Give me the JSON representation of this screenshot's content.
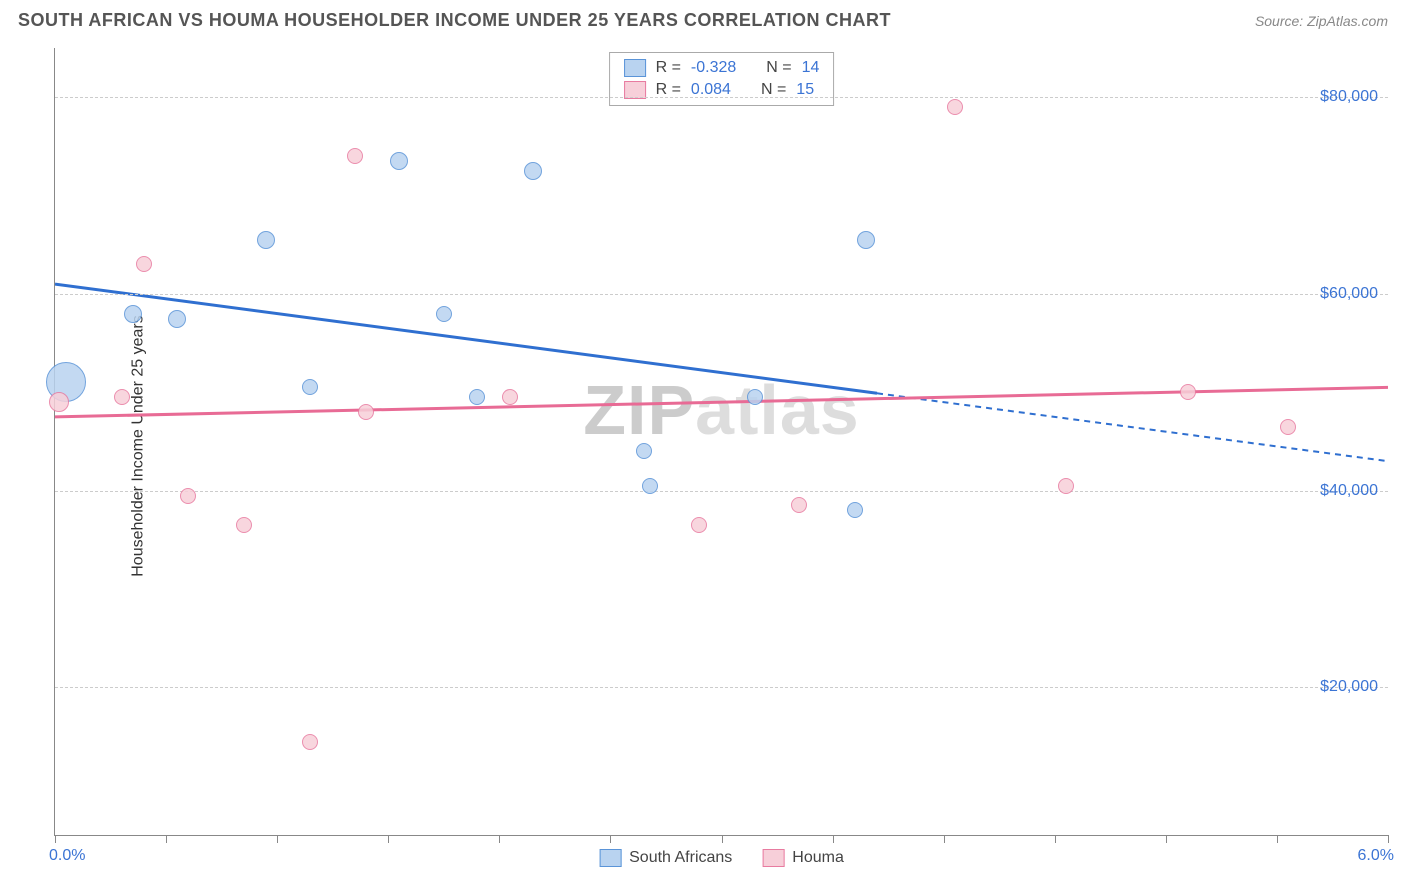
{
  "header": {
    "title": "SOUTH AFRICAN VS HOUMA HOUSEHOLDER INCOME UNDER 25 YEARS CORRELATION CHART",
    "source": "Source: ZipAtlas.com"
  },
  "watermark": {
    "part1": "ZIP",
    "part2": "atlas"
  },
  "chart": {
    "type": "scatter",
    "ylabel": "Householder Income Under 25 years",
    "xlim": [
      0.0,
      6.0
    ],
    "ylim": [
      5000,
      85000
    ],
    "xticks_pct": [
      0,
      0.5,
      1.0,
      1.5,
      2.0,
      2.5,
      3.0,
      3.5,
      4.0,
      4.5,
      5.0,
      5.5,
      6.0
    ],
    "xaxis_start_label": "0.0%",
    "xaxis_end_label": "6.0%",
    "yticks": [
      {
        "value": 20000,
        "label": "$20,000"
      },
      {
        "value": 40000,
        "label": "$40,000"
      },
      {
        "value": 60000,
        "label": "$60,000"
      },
      {
        "value": 80000,
        "label": "$80,000"
      }
    ],
    "series": [
      {
        "name": "South Africans",
        "color_fill": "#b9d3f0",
        "color_stroke": "#5a94d8",
        "line_color": "#2f6fd0",
        "R": "-0.328",
        "N": "14",
        "trend": {
          "y_at_xmin": 61000,
          "y_at_xmax": 43000,
          "solid_until_x": 3.7
        },
        "points": [
          {
            "x": 0.05,
            "y": 51000,
            "r": 20
          },
          {
            "x": 0.35,
            "y": 58000,
            "r": 9
          },
          {
            "x": 0.55,
            "y": 57500,
            "r": 9
          },
          {
            "x": 0.95,
            "y": 65500,
            "r": 9
          },
          {
            "x": 1.15,
            "y": 50500,
            "r": 8
          },
          {
            "x": 1.55,
            "y": 73500,
            "r": 9
          },
          {
            "x": 1.75,
            "y": 58000,
            "r": 8
          },
          {
            "x": 1.9,
            "y": 49500,
            "r": 8
          },
          {
            "x": 2.15,
            "y": 72500,
            "r": 9
          },
          {
            "x": 2.65,
            "y": 44000,
            "r": 8
          },
          {
            "x": 2.68,
            "y": 40500,
            "r": 8
          },
          {
            "x": 3.15,
            "y": 49500,
            "r": 8
          },
          {
            "x": 3.6,
            "y": 38000,
            "r": 8
          },
          {
            "x": 3.65,
            "y": 65500,
            "r": 9
          }
        ]
      },
      {
        "name": "Houma",
        "color_fill": "#f7cfd9",
        "color_stroke": "#e87ba0",
        "line_color": "#e86b95",
        "R": "0.084",
        "N": "15",
        "trend": {
          "y_at_xmin": 47500,
          "y_at_xmax": 50500,
          "solid_until_x": 6.0
        },
        "points": [
          {
            "x": 0.02,
            "y": 49000,
            "r": 10
          },
          {
            "x": 0.3,
            "y": 49500,
            "r": 8
          },
          {
            "x": 0.4,
            "y": 63000,
            "r": 8
          },
          {
            "x": 0.6,
            "y": 39500,
            "r": 8
          },
          {
            "x": 0.85,
            "y": 36500,
            "r": 8
          },
          {
            "x": 1.15,
            "y": 14500,
            "r": 8
          },
          {
            "x": 1.35,
            "y": 74000,
            "r": 8
          },
          {
            "x": 1.4,
            "y": 48000,
            "r": 8
          },
          {
            "x": 2.05,
            "y": 49500,
            "r": 8
          },
          {
            "x": 2.9,
            "y": 36500,
            "r": 8
          },
          {
            "x": 3.35,
            "y": 38500,
            "r": 8
          },
          {
            "x": 4.05,
            "y": 79000,
            "r": 8
          },
          {
            "x": 4.55,
            "y": 40500,
            "r": 8
          },
          {
            "x": 5.1,
            "y": 50000,
            "r": 8
          },
          {
            "x": 5.55,
            "y": 46500,
            "r": 8
          }
        ]
      }
    ],
    "legend_top": {
      "r_label": "R =",
      "n_label": "N ="
    },
    "colors": {
      "axis": "#888888",
      "grid": "#cccccc",
      "tick_label": "#3b74d4",
      "title_text": "#555555",
      "source_text": "#888888",
      "background": "#ffffff"
    },
    "fontsize": {
      "title": 18,
      "axis_label": 16,
      "tick": 16,
      "legend": 16
    }
  }
}
